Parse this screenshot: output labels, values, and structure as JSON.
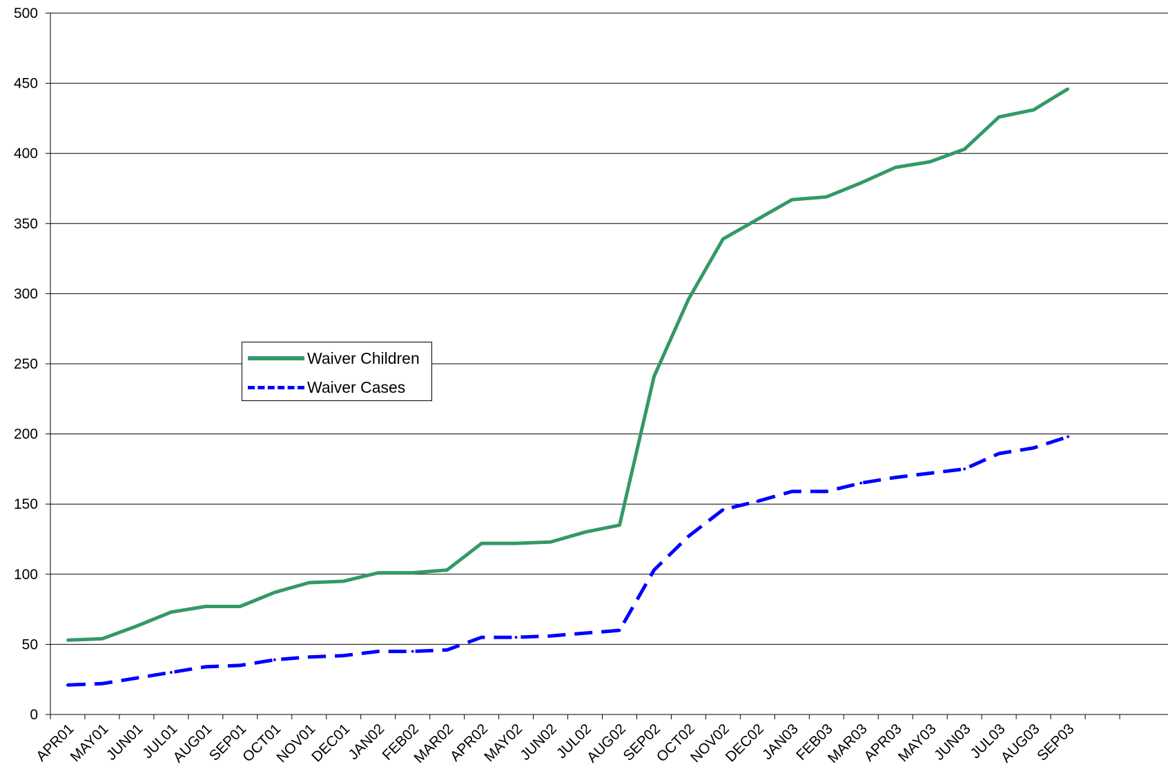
{
  "chart_data": {
    "type": "line",
    "title": "",
    "xlabel": "",
    "ylabel": "",
    "ylim": [
      0,
      500
    ],
    "yticks": [
      0,
      50,
      100,
      150,
      200,
      250,
      300,
      350,
      400,
      450,
      500
    ],
    "grid": "horizontal",
    "legend_position": "center-left",
    "categories": [
      "APR01",
      "MAY01",
      "JUN01",
      "JUL01",
      "AUG01",
      "SEP01",
      "OCT01",
      "NOV01",
      "DEC01",
      "JAN02",
      "FEB02",
      "MAR02",
      "APR02",
      "MAY02",
      "JUN02",
      "JUL02",
      "AUG02",
      "SEP02",
      "OCT02",
      "NOV02",
      "DEC02",
      "JAN03",
      "FEB03",
      "MAR03",
      "APR03",
      "MAY03",
      "JUN03",
      "JUL03",
      "AUG03",
      "SEP03"
    ],
    "series": [
      {
        "name": "Waiver Children",
        "color": "#339966",
        "style": "solid",
        "values": [
          53,
          54,
          63,
          73,
          77,
          77,
          87,
          94,
          95,
          101,
          101,
          103,
          122,
          122,
          123,
          130,
          135,
          241,
          296,
          339,
          353,
          367,
          369,
          379,
          390,
          394,
          403,
          426,
          431,
          446
        ]
      },
      {
        "name": "Waiver Cases",
        "color": "#0000ff",
        "style": "dashed",
        "values": [
          21,
          22,
          26,
          30,
          34,
          35,
          39,
          41,
          42,
          45,
          45,
          46,
          55,
          55,
          56,
          58,
          60,
          103,
          127,
          146,
          152,
          159,
          159,
          165,
          169,
          172,
          175,
          186,
          190,
          198
        ]
      }
    ]
  }
}
